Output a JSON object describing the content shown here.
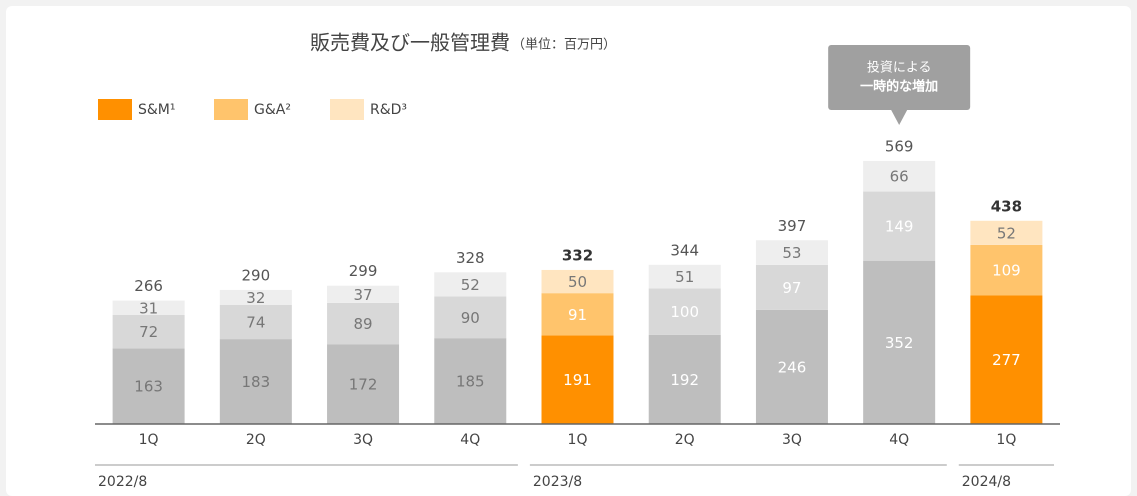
{
  "chart_data": {
    "type": "bar",
    "stacked": true,
    "title": "販売費及び一般管理費",
    "subtitle": "（単位：百万円）",
    "categories": [
      "1Q",
      "2Q",
      "3Q",
      "4Q",
      "1Q",
      "2Q",
      "3Q",
      "4Q",
      "1Q"
    ],
    "groups": [
      {
        "label": "2022/8",
        "span": 4
      },
      {
        "label": "2023/8",
        "span": 4
      },
      {
        "label": "2024/8",
        "span": 1
      }
    ],
    "series": [
      {
        "name": "S&M¹",
        "color": "#ff9000",
        "muted_color": "#bebebe",
        "values": [
          163,
          183,
          172,
          185,
          191,
          192,
          246,
          352,
          277
        ]
      },
      {
        "name": "G&A²",
        "color": "#ffc46c",
        "muted_color": "#d8d8d8",
        "values": [
          72,
          74,
          89,
          90,
          91,
          100,
          97,
          149,
          109
        ]
      },
      {
        "name": "R&D³",
        "color": "#ffe5c0",
        "muted_color": "#eeeeee",
        "values": [
          31,
          32,
          37,
          52,
          50,
          51,
          53,
          66,
          52
        ]
      }
    ],
    "totals": [
      266,
      290,
      299,
      328,
      332,
      344,
      397,
      569,
      438
    ],
    "highlight": [
      false,
      false,
      false,
      false,
      true,
      false,
      false,
      false,
      true
    ],
    "annotation": {
      "lines": [
        "投資による",
        "一時的な増加"
      ],
      "category": 7
    }
  }
}
